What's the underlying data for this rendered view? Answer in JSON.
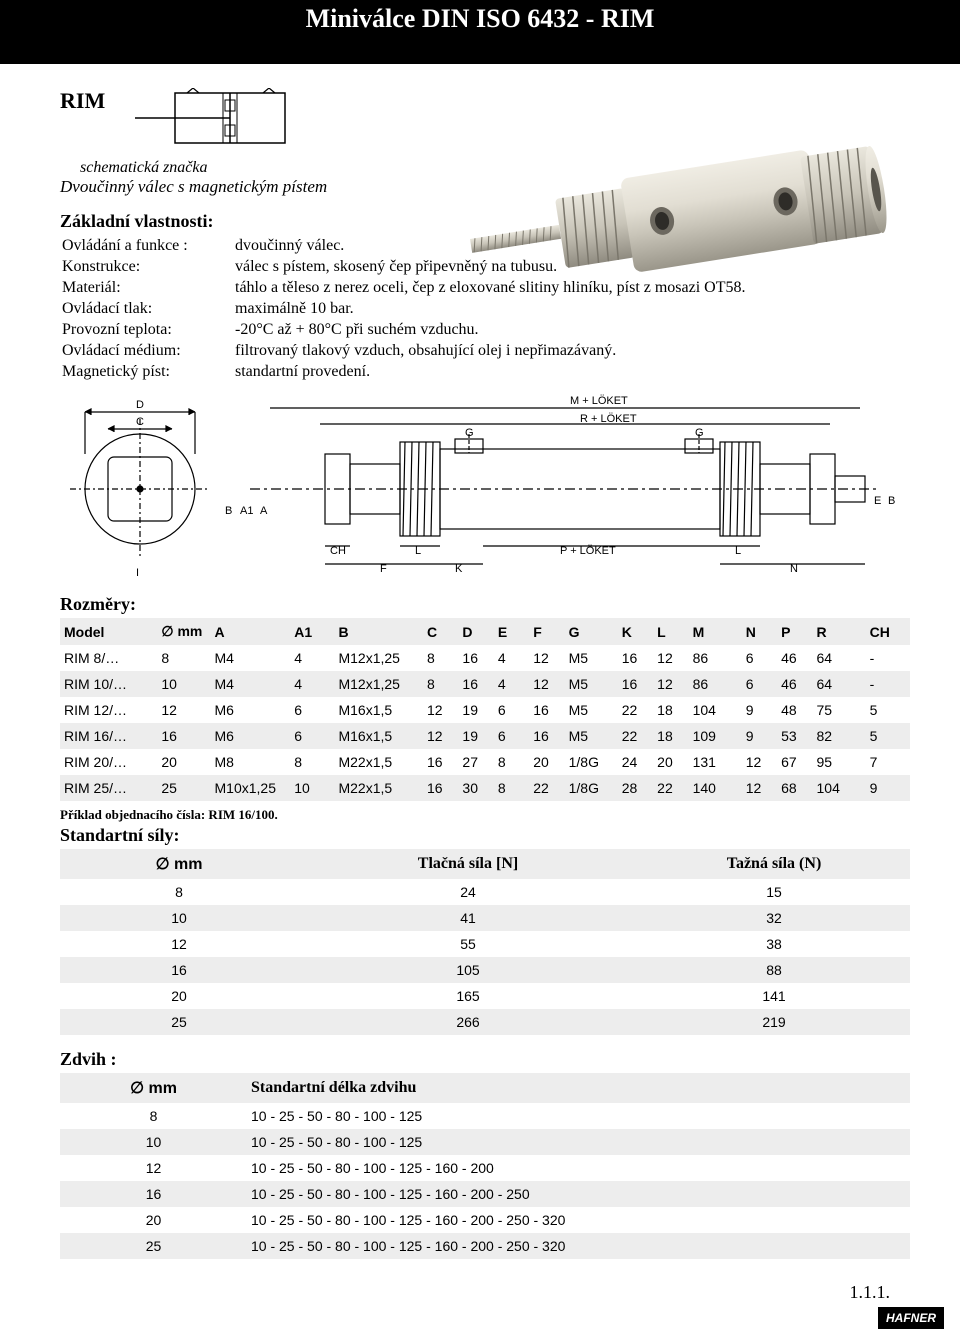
{
  "header": {
    "title": "Miniválce DIN ISO 6432 - RIM"
  },
  "rim": {
    "label": "RIM",
    "schematic_caption": "schematická značka",
    "subtitle": "Dvoučinný válec s magnetickým pístem"
  },
  "props": {
    "title": "Základní vlastnosti:",
    "rows": [
      {
        "label": "Ovládání a funkce :",
        "value": "dvoučinný válec."
      },
      {
        "label": "Konstrukce:",
        "value": "válec s pístem, skosený čep připevněný na tubusu."
      },
      {
        "label": "Materiál:",
        "value": "táhlo a těleso z nerez oceli, čep z eloxované slitiny hliníku, píst z mosazi OT58."
      },
      {
        "label": "Ovládací tlak:",
        "value": "maximálně 10 bar."
      },
      {
        "label": "Provozní teplota:",
        "value": "   -20°C až + 80°C při suchém vzduchu."
      },
      {
        "label": "Ovládací médium:",
        "value": "filtrovaný tlakový vzduch, obsahující olej i nepřimazávaný."
      },
      {
        "label": "Magnetický píst:",
        "value": "standartní provedení."
      }
    ]
  },
  "dims": {
    "title": "Rozměry:",
    "columns": [
      "Model",
      "∅ mm",
      "A",
      "A1",
      "B",
      "C",
      "D",
      "E",
      "F",
      "G",
      "K",
      "L",
      "M",
      "N",
      "P",
      "R",
      "CH"
    ],
    "rows": [
      [
        "RIM 8/…",
        "8",
        "M4",
        "4",
        "M12x1,25",
        "8",
        "16",
        "4",
        "12",
        "M5",
        "16",
        "12",
        "86",
        "6",
        "46",
        "64",
        "-"
      ],
      [
        "RIM 10/…",
        "10",
        "M4",
        "4",
        "M12x1,25",
        "8",
        "16",
        "4",
        "12",
        "M5",
        "16",
        "12",
        "86",
        "6",
        "46",
        "64",
        "-"
      ],
      [
        "RIM 12/…",
        "12",
        "M6",
        "6",
        "M16x1,5",
        "12",
        "19",
        "6",
        "16",
        "M5",
        "22",
        "18",
        "104",
        "9",
        "48",
        "75",
        "5"
      ],
      [
        "RIM 16/…",
        "16",
        "M6",
        "6",
        "M16x1,5",
        "12",
        "19",
        "6",
        "16",
        "M5",
        "22",
        "18",
        "109",
        "9",
        "53",
        "82",
        "5"
      ],
      [
        "RIM 20/…",
        "20",
        "M8",
        "8",
        "M22x1,5",
        "16",
        "27",
        "8",
        "20",
        "1/8G",
        "24",
        "20",
        "131",
        "12",
        "67",
        "95",
        "7"
      ],
      [
        "RIM 25/…",
        "25",
        "M10x1,25",
        "10",
        "M22x1,5",
        "16",
        "30",
        "8",
        "22",
        "1/8G",
        "28",
        "22",
        "140",
        "12",
        "68",
        "104",
        "9"
      ]
    ],
    "colwidths": [
      "11%",
      "6%",
      "9%",
      "5%",
      "10%",
      "4%",
      "4%",
      "4%",
      "4%",
      "6%",
      "4%",
      "4%",
      "6%",
      "4%",
      "4%",
      "6%",
      "5%"
    ]
  },
  "order_note": "Příklad objednacího čísla: RIM 16/100.",
  "forces": {
    "title": "Standartní síly:",
    "headers": [
      "∅ mm",
      "Tlačná síla [N]",
      "Tažná síla  (N)"
    ],
    "rows": [
      [
        "8",
        "24",
        "15"
      ],
      [
        "10",
        "41",
        "32"
      ],
      [
        "12",
        "55",
        "38"
      ],
      [
        "16",
        "105",
        "88"
      ],
      [
        "20",
        "165",
        "141"
      ],
      [
        "25",
        "266",
        "219"
      ]
    ]
  },
  "stroke": {
    "title": "Zdvih :",
    "headers": [
      "∅ mm",
      "Standartní délka zdvihu"
    ],
    "rows": [
      [
        "8",
        "10 - 25 - 50 - 80 - 100 - 125"
      ],
      [
        "10",
        "10 - 25 - 50 - 80 - 100 - 125"
      ],
      [
        "12",
        "10 - 25 - 50 - 80 - 100 - 125 - 160 - 200"
      ],
      [
        "16",
        "10 - 25 - 50 - 80 - 100 - 125 - 160 - 200 - 250"
      ],
      [
        "20",
        "10 - 25 - 50 - 80 - 100 - 125 - 160 - 200 - 250 - 320"
      ],
      [
        "25",
        "10 - 25 - 50 - 80 - 100 - 125 - 160 - 200 - 250 - 320"
      ]
    ]
  },
  "footer": {
    "page": "1.1.1.",
    "brand": "HAFNER"
  },
  "colors": {
    "alt_row": "#ededed",
    "black": "#000000",
    "white": "#ffffff",
    "cylinder_body": "#d8d4c8",
    "cylinder_highlight": "#f0ede4",
    "cylinder_shadow": "#9a968a"
  },
  "drawing_labels": {
    "top1": "M + LÖKET",
    "top2": "R + LÖKET",
    "bot_p": "P + LÖKET",
    "d": "D",
    "c": "C",
    "b": "B",
    "a1": "A1",
    "a": "A",
    "ch": "CH",
    "f": "F",
    "l": "L",
    "k": "K",
    "g": "G",
    "e": "E",
    "n": "N",
    "i": "I"
  }
}
